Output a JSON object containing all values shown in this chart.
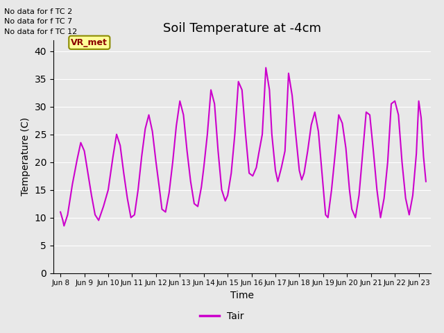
{
  "title": "Soil Temperature at -4cm",
  "xlabel": "Time",
  "ylabel": "Temperature (C)",
  "ylim": [
    0,
    42
  ],
  "yticks": [
    0,
    5,
    10,
    15,
    20,
    25,
    30,
    35,
    40
  ],
  "line_color": "#CC00CC",
  "line_width": 1.5,
  "legend_label": "Tair",
  "background_color": "#E8E8E8",
  "fig_background": "#E8E8E8",
  "no_data_texts": [
    "No data for f TC 2",
    "No data for f TC 7",
    "No data for f TC 12"
  ],
  "vr_met_label": "VR_met",
  "x_tick_labels": [
    "Jun 8",
    "Jun 9",
    "Jun 10",
    "Jun 11",
    "Jun 12",
    "Jun 13",
    "Jun 14",
    "Jun 15",
    "Jun 16",
    "Jun 17",
    "Jun 18",
    "Jun 19",
    "Jun 20",
    "Jun 21",
    "Jun 22",
    "Jun 23"
  ],
  "temp_data": [
    [
      0.0,
      11.0
    ],
    [
      0.1,
      9.5
    ],
    [
      0.15,
      8.5
    ],
    [
      0.3,
      10.5
    ],
    [
      0.5,
      16.0
    ],
    [
      0.7,
      20.5
    ],
    [
      0.85,
      23.5
    ],
    [
      1.0,
      22.0
    ],
    [
      1.15,
      18.0
    ],
    [
      1.3,
      14.0
    ],
    [
      1.45,
      10.5
    ],
    [
      1.6,
      9.5
    ],
    [
      1.8,
      12.0
    ],
    [
      2.0,
      15.0
    ],
    [
      2.1,
      18.0
    ],
    [
      2.2,
      21.0
    ],
    [
      2.35,
      25.0
    ],
    [
      2.5,
      23.0
    ],
    [
      2.65,
      18.0
    ],
    [
      2.8,
      13.5
    ],
    [
      2.95,
      10.0
    ],
    [
      3.1,
      10.5
    ],
    [
      3.25,
      15.0
    ],
    [
      3.4,
      21.0
    ],
    [
      3.55,
      26.0
    ],
    [
      3.7,
      28.5
    ],
    [
      3.85,
      25.5
    ],
    [
      4.0,
      20.0
    ],
    [
      4.15,
      15.0
    ],
    [
      4.25,
      11.5
    ],
    [
      4.4,
      11.0
    ],
    [
      4.55,
      14.5
    ],
    [
      4.7,
      20.0
    ],
    [
      4.85,
      26.5
    ],
    [
      5.0,
      31.0
    ],
    [
      5.15,
      28.5
    ],
    [
      5.3,
      22.0
    ],
    [
      5.45,
      16.5
    ],
    [
      5.6,
      12.5
    ],
    [
      5.75,
      12.0
    ],
    [
      5.9,
      15.5
    ],
    [
      6.0,
      19.0
    ],
    [
      6.15,
      25.0
    ],
    [
      6.3,
      33.0
    ],
    [
      6.45,
      30.5
    ],
    [
      6.6,
      22.0
    ],
    [
      6.75,
      15.0
    ],
    [
      6.9,
      13.0
    ],
    [
      7.0,
      14.0
    ],
    [
      7.15,
      18.0
    ],
    [
      7.3,
      25.0
    ],
    [
      7.45,
      34.5
    ],
    [
      7.6,
      33.0
    ],
    [
      7.75,
      25.0
    ],
    [
      7.9,
      18.0
    ],
    [
      8.05,
      17.5
    ],
    [
      8.2,
      19.0
    ],
    [
      8.3,
      21.5
    ],
    [
      8.45,
      25.0
    ],
    [
      8.6,
      37.0
    ],
    [
      8.75,
      33.0
    ],
    [
      8.85,
      25.0
    ],
    [
      9.0,
      18.5
    ],
    [
      9.1,
      16.5
    ],
    [
      9.25,
      19.0
    ],
    [
      9.4,
      22.0
    ],
    [
      9.55,
      36.0
    ],
    [
      9.7,
      32.0
    ],
    [
      9.85,
      25.0
    ],
    [
      10.0,
      18.5
    ],
    [
      10.1,
      16.8
    ],
    [
      10.2,
      18.0
    ],
    [
      10.35,
      22.0
    ],
    [
      10.5,
      26.7
    ],
    [
      10.65,
      29.0
    ],
    [
      10.8,
      25.5
    ],
    [
      10.95,
      18.0
    ],
    [
      11.1,
      10.5
    ],
    [
      11.2,
      10.0
    ],
    [
      11.35,
      15.0
    ],
    [
      11.5,
      21.5
    ],
    [
      11.65,
      28.5
    ],
    [
      11.8,
      27.0
    ],
    [
      11.95,
      22.5
    ],
    [
      12.1,
      15.0
    ],
    [
      12.2,
      11.5
    ],
    [
      12.35,
      10.0
    ],
    [
      12.5,
      14.0
    ],
    [
      12.65,
      21.5
    ],
    [
      12.8,
      29.0
    ],
    [
      12.95,
      28.5
    ],
    [
      13.1,
      22.0
    ],
    [
      13.25,
      15.0
    ],
    [
      13.4,
      10.0
    ],
    [
      13.55,
      13.5
    ],
    [
      13.7,
      20.0
    ],
    [
      13.85,
      30.5
    ],
    [
      14.0,
      31.0
    ],
    [
      14.15,
      28.5
    ],
    [
      14.3,
      20.0
    ],
    [
      14.45,
      13.5
    ],
    [
      14.6,
      10.5
    ],
    [
      14.75,
      14.0
    ],
    [
      14.9,
      21.5
    ],
    [
      15.0,
      31.0
    ],
    [
      15.1,
      28.0
    ],
    [
      15.2,
      21.0
    ],
    [
      15.3,
      16.5
    ]
  ]
}
